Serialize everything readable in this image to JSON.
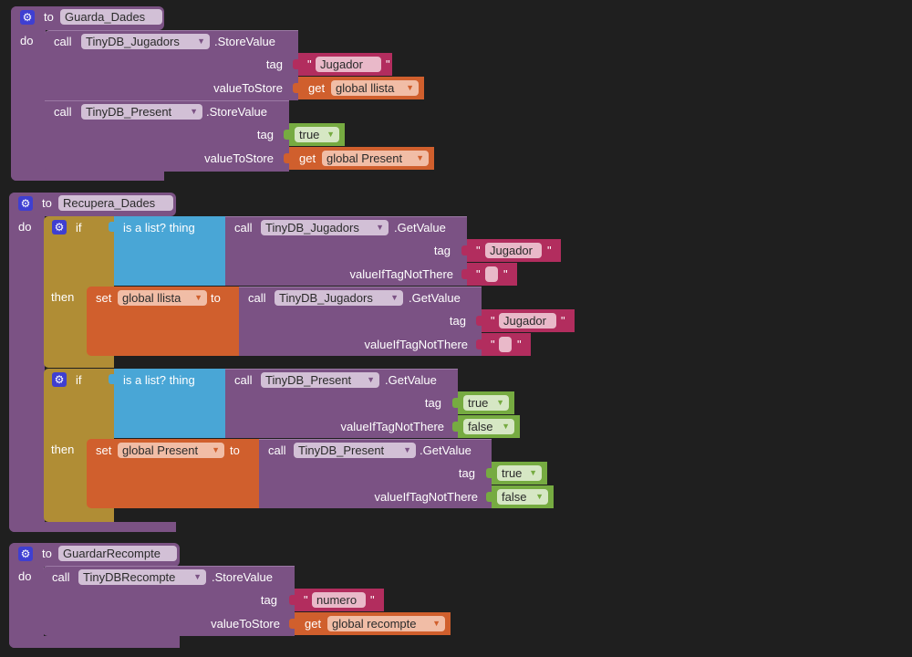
{
  "colors": {
    "procedure": "#7b5284",
    "control": "#b08d35",
    "list": "#49a6d6",
    "text": "#b22d5e",
    "variable": "#d05f2d",
    "logic": "#76ab41",
    "background": "#1f1f1f"
  },
  "icons": {
    "procedure": "gear-icon",
    "if": "gear-icon",
    "dropdown": "chevron-down-icon"
  },
  "quote": "\"",
  "p1": {
    "to": "to",
    "name": "Guarda_Dades",
    "do": "do",
    "c1": {
      "call": "call",
      "component": "TinyDB_Jugadors",
      "method": ".StoreValue",
      "tag": "tag",
      "vts": "valueToStore",
      "tag_value": "Jugador",
      "get": "get",
      "var": "global llista"
    },
    "c2": {
      "call": "call",
      "component": "TinyDB_Present",
      "method": ".StoreValue",
      "tag": "tag",
      "vts": "valueToStore",
      "tag_value": "true",
      "get": "get",
      "var": "global Present"
    }
  },
  "p2": {
    "to": "to",
    "name": "Recupera_Dades",
    "do": "do",
    "if1": {
      "if": "if",
      "then": "then",
      "is_list": "is a list?  thing",
      "cond_call": {
        "call": "call",
        "component": "TinyDB_Jugadors",
        "method": ".GetValue",
        "tag": "tag",
        "vin": "valueIfTagNotThere",
        "tag_value": "Jugador",
        "default_value": ""
      },
      "set": "set",
      "var": "global llista",
      "to": "to",
      "set_call": {
        "call": "call",
        "component": "TinyDB_Jugadors",
        "method": ".GetValue",
        "tag": "tag",
        "vin": "valueIfTagNotThere",
        "tag_value": "Jugador",
        "default_value": ""
      }
    },
    "if2": {
      "if": "if",
      "then": "then",
      "is_list": "is a list?  thing",
      "cond_call": {
        "call": "call",
        "component": "TinyDB_Present",
        "method": ".GetValue",
        "tag": "tag",
        "vin": "valueIfTagNotThere",
        "tag_value": "true",
        "default_value": "false"
      },
      "set": "set",
      "var": "global Present",
      "to": "to",
      "set_call": {
        "call": "call",
        "component": "TinyDB_Present",
        "method": ".GetValue",
        "tag": "tag",
        "vin": "valueIfTagNotThere",
        "tag_value": "true",
        "default_value": "false"
      }
    }
  },
  "p3": {
    "to": "to",
    "name": "GuardarRecompte",
    "do": "do",
    "c1": {
      "call": "call",
      "component": "TinyDBRecompte",
      "method": ".StoreValue",
      "tag": "tag",
      "vts": "valueToStore",
      "tag_value": "numero",
      "get": "get",
      "var": "global recompte"
    }
  }
}
